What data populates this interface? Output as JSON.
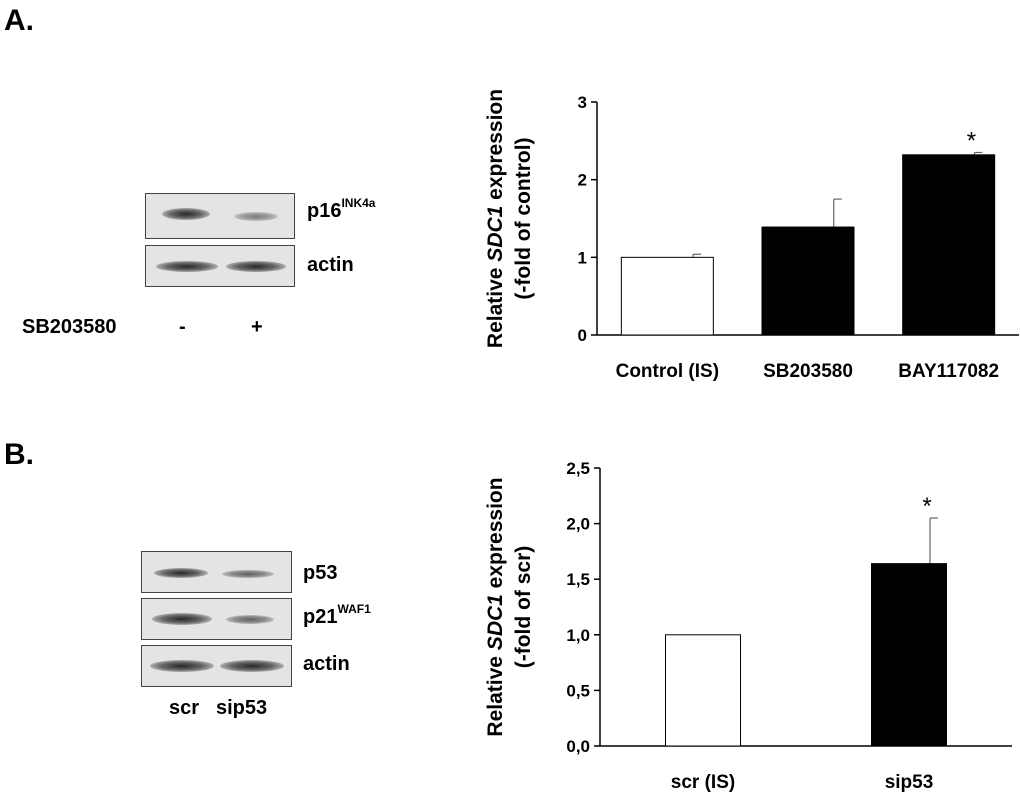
{
  "panels": {
    "a": {
      "letter": "A."
    },
    "b": {
      "letter": "B."
    }
  },
  "blot_a": {
    "rows": [
      {
        "label": "p16",
        "superscript": "INK4a"
      },
      {
        "label": "actin",
        "superscript": ""
      }
    ],
    "treatment_label": "SB203580",
    "lane_labels": [
      "-",
      "+"
    ]
  },
  "blot_b": {
    "rows": [
      {
        "label": "p53",
        "superscript": ""
      },
      {
        "label": "p21",
        "superscript": "WAF1"
      },
      {
        "label": "actin",
        "superscript": ""
      }
    ],
    "lane_labels": [
      "scr",
      "sip53"
    ]
  },
  "chart_data": [
    {
      "type": "bar",
      "categories": [
        "Control (IS)",
        "SB203580",
        "BAY117082"
      ],
      "values": [
        1.0,
        1.39,
        2.32
      ],
      "errors": [
        0.04,
        0.36,
        0.03
      ],
      "significance": [
        "",
        "",
        "*"
      ],
      "bar_colors": [
        "#ffffff",
        "#000000",
        "#000000"
      ],
      "ylabel_parts": [
        "Relative ",
        "SDC1",
        " expression"
      ],
      "ylabel_line2": "(-fold of control)",
      "ylim": [
        0,
        3
      ],
      "yticks": [
        0,
        1,
        2,
        3
      ],
      "ytick_labels": [
        "0",
        "1",
        "2",
        "3"
      ]
    },
    {
      "type": "bar",
      "categories": [
        "scr (IS)",
        "sip53"
      ],
      "values": [
        1.0,
        1.64
      ],
      "errors": [
        0.0,
        0.41
      ],
      "significance": [
        "",
        "*"
      ],
      "bar_colors": [
        "#ffffff",
        "#000000"
      ],
      "ylabel_parts": [
        "Relative ",
        "SDC1",
        " expression"
      ],
      "ylabel_line2": "(-fold of scr)",
      "ylim": [
        0,
        2.5
      ],
      "yticks": [
        0,
        0.5,
        1.0,
        1.5,
        2.0,
        2.5
      ],
      "ytick_labels": [
        "0,0",
        "0,5",
        "1,0",
        "1,5",
        "2,0",
        "2,5"
      ]
    }
  ]
}
